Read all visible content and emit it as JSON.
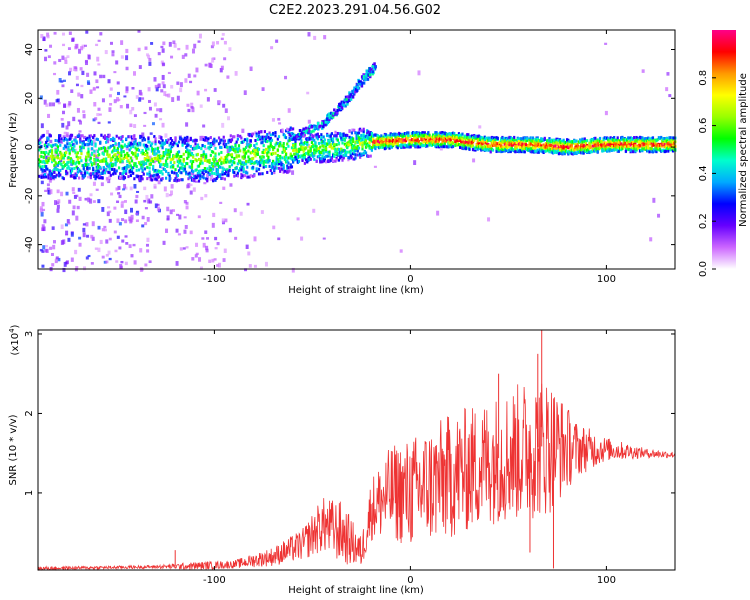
{
  "title": "C2E2.2023.291.04.56.G02",
  "chart_data": [
    {
      "type": "heatmap",
      "xlabel": "Height of straight line (km)",
      "ylabel": "Frequency (Hz)",
      "xlim": [
        -190,
        135
      ],
      "ylim": [
        -50,
        48
      ],
      "xticks": [
        -100,
        0,
        100
      ],
      "yticks": [
        -40,
        -20,
        0,
        20,
        40
      ],
      "colorbar": {
        "label": "Normalized spectral amplitude",
        "range": [
          0.0,
          1.0
        ],
        "ticks": [
          "0.0",
          "0.2",
          "0.4",
          "0.6",
          "0.8"
        ],
        "colormap": [
          "#ff0088",
          "#ff0000",
          "#ff9900",
          "#ffff00",
          "#99ff00",
          "#00ff00",
          "#00ffcc",
          "#00aaff",
          "#0000ff",
          "#6600ff",
          "#cc66ff",
          "#ffffff"
        ]
      },
      "ridge": {
        "description_points": [
          {
            "x": -190,
            "y": -4
          },
          {
            "x": -150,
            "y": -4
          },
          {
            "x": -120,
            "y": -5
          },
          {
            "x": -100,
            "y": -5
          },
          {
            "x": -80,
            "y": -3
          },
          {
            "x": -60,
            "y": -1
          },
          {
            "x": -40,
            "y": 0
          },
          {
            "x": -20,
            "y": 2
          },
          {
            "x": 0,
            "y": 3
          },
          {
            "x": 20,
            "y": 3
          },
          {
            "x": 40,
            "y": 1
          },
          {
            "x": 60,
            "y": 1
          },
          {
            "x": 80,
            "y": 0
          },
          {
            "x": 100,
            "y": 1
          },
          {
            "x": 120,
            "y": 1
          },
          {
            "x": 135,
            "y": 1
          }
        ],
        "branch_points": [
          {
            "x": -60,
            "y": 5
          },
          {
            "x": -45,
            "y": 10
          },
          {
            "x": -35,
            "y": 18
          },
          {
            "x": -25,
            "y": 28
          },
          {
            "x": -18,
            "y": 34
          }
        ]
      }
    },
    {
      "type": "line",
      "xlabel": "Height of straight line (km)",
      "ylabel": "SNR (10 * v/v)",
      "y_multiplier_label": "(x10",
      "y_multiplier_exp": "4",
      "y_multiplier_close": ")",
      "xlim": [
        -190,
        135
      ],
      "ylim": [
        0.03,
        3.05
      ],
      "xticks": [
        -100,
        0,
        100
      ],
      "yticks": [
        1,
        2,
        3
      ],
      "color": "#ee3333",
      "envelope": [
        {
          "x": -190,
          "base": 0.05,
          "amp": 0.02
        },
        {
          "x": -130,
          "base": 0.07,
          "amp": 0.02
        },
        {
          "x": -110,
          "base": 0.08,
          "amp": 0.05
        },
        {
          "x": -90,
          "base": 0.1,
          "amp": 0.05
        },
        {
          "x": -70,
          "base": 0.2,
          "amp": 0.12
        },
        {
          "x": -55,
          "base": 0.35,
          "amp": 0.2
        },
        {
          "x": -45,
          "base": 0.6,
          "amp": 0.35
        },
        {
          "x": -35,
          "base": 0.5,
          "amp": 0.4
        },
        {
          "x": -25,
          "base": 0.25,
          "amp": 0.2
        },
        {
          "x": -20,
          "base": 0.8,
          "amp": 0.4
        },
        {
          "x": -10,
          "base": 1.0,
          "amp": 0.6
        },
        {
          "x": 0,
          "base": 1.0,
          "amp": 0.7
        },
        {
          "x": 20,
          "base": 1.2,
          "amp": 0.8
        },
        {
          "x": 40,
          "base": 1.4,
          "amp": 0.8
        },
        {
          "x": 60,
          "base": 1.55,
          "amp": 0.9
        },
        {
          "x": 70,
          "base": 1.6,
          "amp": 0.9
        },
        {
          "x": 85,
          "base": 1.55,
          "amp": 0.35
        },
        {
          "x": 100,
          "base": 1.55,
          "amp": 0.15
        },
        {
          "x": 120,
          "base": 1.5,
          "amp": 0.06
        },
        {
          "x": 135,
          "base": 1.48,
          "amp": 0.04
        }
      ],
      "peaks": [
        {
          "x": -120,
          "y": 0.28
        },
        {
          "x": -80,
          "y": 0.2
        },
        {
          "x": 61,
          "y": 0.25
        },
        {
          "x": 65,
          "y": 2.75
        },
        {
          "x": 67,
          "y": 3.05
        },
        {
          "x": 73,
          "y": 0.05
        },
        {
          "x": 45,
          "y": 2.5
        }
      ]
    }
  ]
}
